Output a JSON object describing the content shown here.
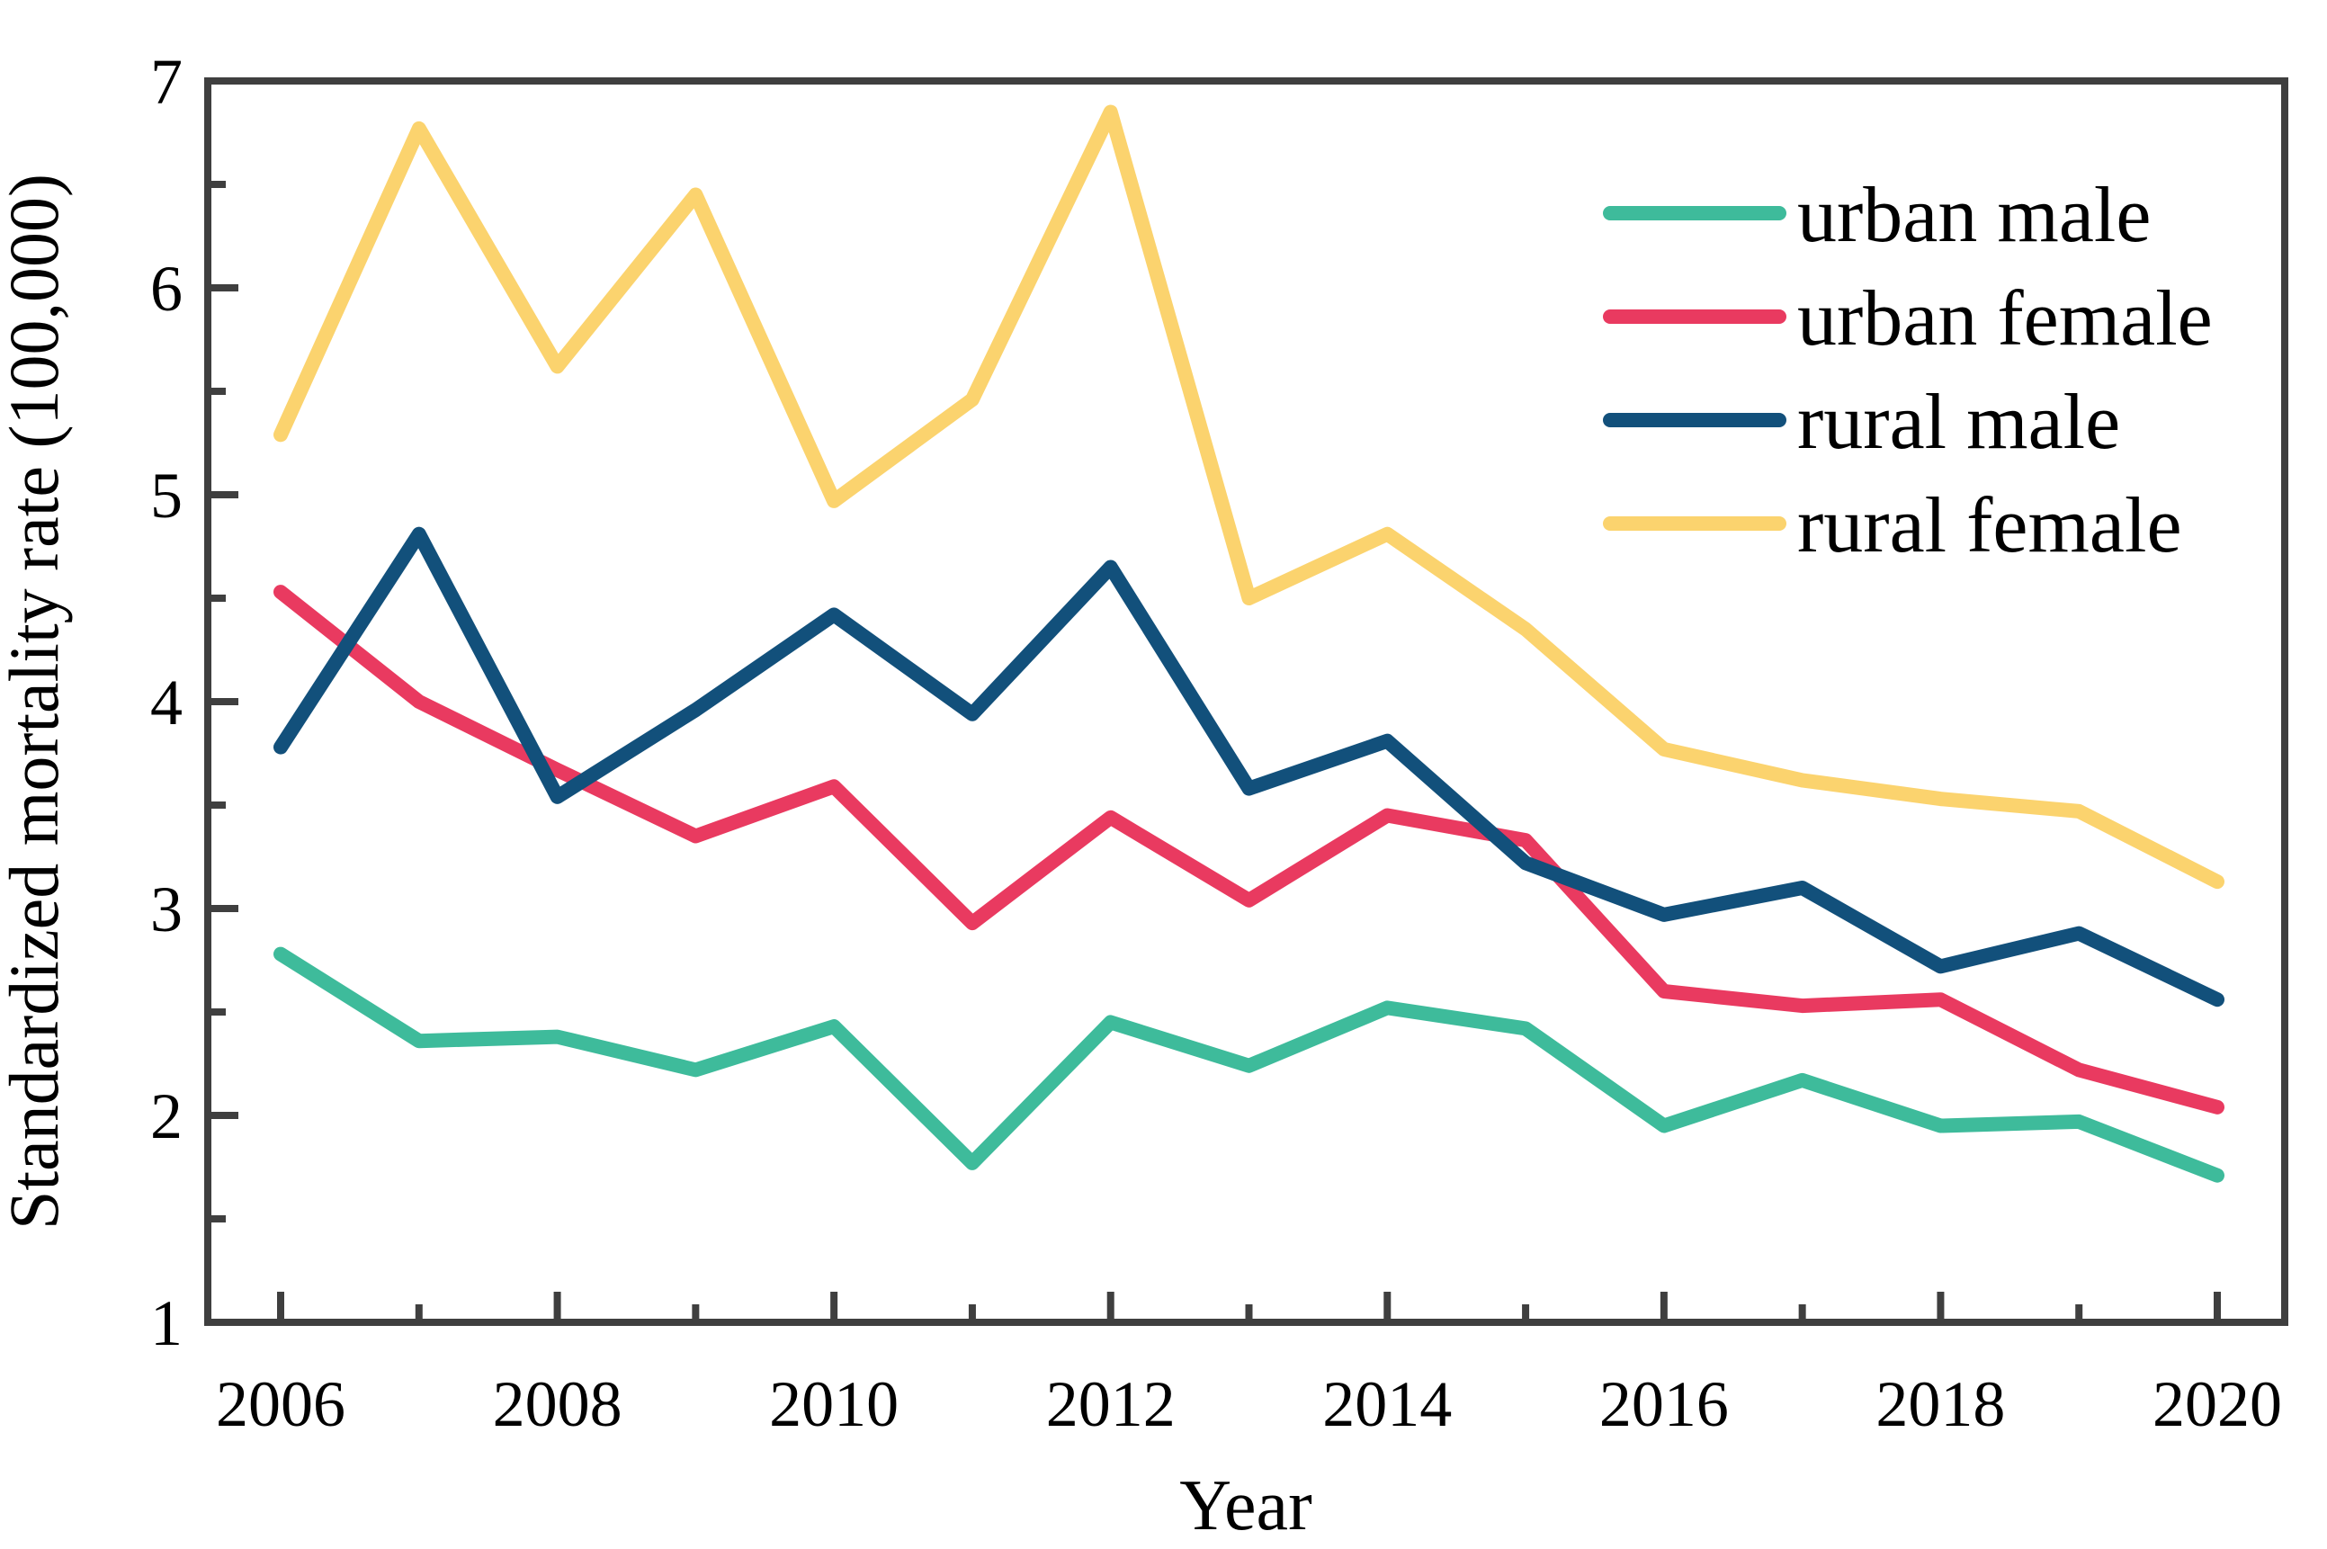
{
  "figure": {
    "background": "#ffffff",
    "axis_color": "#3f3f3f",
    "text_color": "#000000"
  },
  "chart_data": {
    "type": "line",
    "title": "",
    "xlabel": "Year",
    "ylabel": "Standardized mortality rate (100,000)",
    "x": [
      2006,
      2007,
      2008,
      2009,
      2010,
      2011,
      2012,
      2013,
      2014,
      2015,
      2016,
      2017,
      2018,
      2019,
      2020
    ],
    "x_tick_labels": [
      "2006",
      "2008",
      "2010",
      "2012",
      "2014",
      "2016",
      "2018",
      "2020"
    ],
    "y_tick_labels": [
      "1",
      "2",
      "3",
      "4",
      "5",
      "6",
      "7"
    ],
    "xlim": [
      2005.47,
      2020.49
    ],
    "ylim": [
      1,
      7
    ],
    "grid": false,
    "legend_position": "upper right",
    "legend_frame": false,
    "series": [
      {
        "name": "urban male",
        "color": "#3EBB9B",
        "values": [
          2.78,
          2.36,
          2.38,
          2.22,
          2.43,
          1.77,
          2.45,
          2.24,
          2.52,
          2.42,
          1.95,
          2.17,
          1.95,
          1.97,
          1.71
        ]
      },
      {
        "name": "urban female",
        "color": "#E93A60",
        "values": [
          4.53,
          4.0,
          3.67,
          3.35,
          3.59,
          2.93,
          3.44,
          3.04,
          3.45,
          3.33,
          2.6,
          2.53,
          2.56,
          2.22,
          2.04
        ]
      },
      {
        "name": "rural male",
        "color": "#12507B",
        "values": [
          3.78,
          4.81,
          3.54,
          3.96,
          4.42,
          3.94,
          4.65,
          3.58,
          3.81,
          3.22,
          2.97,
          3.1,
          2.72,
          2.88,
          2.56
        ]
      },
      {
        "name": "rural female",
        "color": "#FBD36E",
        "values": [
          5.29,
          6.77,
          5.62,
          6.45,
          4.97,
          5.46,
          6.85,
          4.5,
          4.81,
          4.35,
          3.77,
          3.62,
          3.53,
          3.47,
          3.13
        ]
      }
    ]
  }
}
